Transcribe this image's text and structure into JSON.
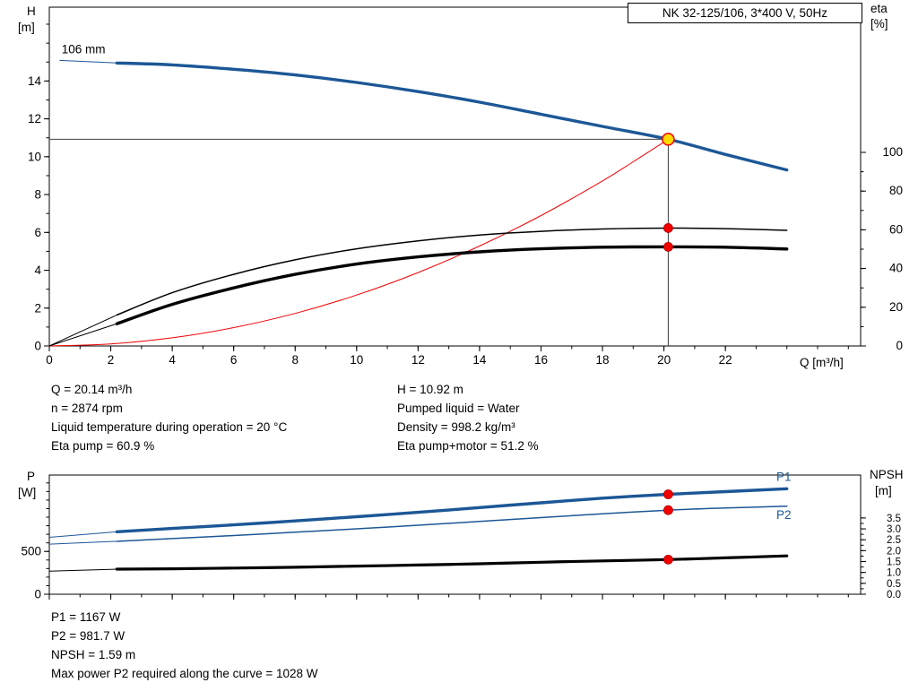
{
  "colors": {
    "blue": "#1c5796",
    "red": "#f20000",
    "yellow": "#ffd900",
    "black": "#000000",
    "ref": "#404040"
  },
  "info_text": {
    "left": [
      "Q = 20.14 m³/h",
      "n = 2874 rpm",
      "Liquid temperature during operation = 20 °C",
      "Eta pump = 60.9 %"
    ],
    "right": [
      "H = 10.92 m",
      "Pumped liquid = Water",
      "Density = 998.2 kg/m³",
      "Eta pump+motor = 51.2 %"
    ]
  },
  "results_text": [
    "P1 = 1167 W",
    "P2 = 981.7 W",
    "NPSH = 1.59 m",
    "Max power P2 required along the curve = 1028 W"
  ],
  "chart_data": [
    {
      "name": "hq-eta-chart",
      "type": "line",
      "title": "NK 32-125/106, 3*400 V, 50Hz",
      "xlabel": "Q [m³/h]",
      "ylabel_left": [
        "H",
        "[m]"
      ],
      "ylabel_right": [
        "eta",
        "[%]"
      ],
      "xlim": [
        0,
        26.4
      ],
      "ylim_left": [
        0,
        17.9
      ],
      "ylim_right": [
        0,
        175
      ],
      "x_major_ticks": [
        0,
        2,
        4,
        6,
        8,
        10,
        12,
        14,
        16,
        18,
        20,
        22
      ],
      "x_minor_step": 1,
      "left_major_ticks": [
        0,
        2,
        4,
        6,
        8,
        10,
        12,
        14
      ],
      "left_minor_step": 1,
      "right_major_ticks": [
        0,
        20,
        40,
        60,
        80,
        100
      ],
      "right_minor_step": 10,
      "right_decimals": 0,
      "annotations": [
        {
          "text": "106 mm",
          "x": 0.4,
          "y": 15.45
        }
      ],
      "ref_lines": {
        "h_value": 10.92,
        "v_value": 20.14
      },
      "series": [
        {
          "name": "head-curve",
          "axis": "left",
          "color": "blue",
          "width": 3.4,
          "lead_in": [
            0.33,
            15.09
          ],
          "x": [
            2.2,
            4,
            6,
            8,
            10,
            12,
            14,
            16,
            18,
            20.14,
            22,
            24
          ],
          "y": [
            14.95,
            14.85,
            14.62,
            14.32,
            13.92,
            13.44,
            12.88,
            12.24,
            11.6,
            10.92,
            10.12,
            9.3
          ]
        },
        {
          "name": "system-curve",
          "axis": "left",
          "color": "red",
          "width": 1,
          "x": [
            0,
            2,
            4,
            6,
            8,
            10,
            12,
            14,
            16,
            18,
            19,
            20.14
          ],
          "y": [
            0,
            0.11,
            0.43,
            0.97,
            1.72,
            2.69,
            3.88,
            5.28,
            6.89,
            8.72,
            9.73,
            10.92
          ]
        },
        {
          "name": "eta-pump-curve",
          "axis": "right",
          "color": "black",
          "width": 1.5,
          "lead_in": [
            0,
            0
          ],
          "x": [
            2.2,
            4,
            6,
            8,
            10,
            12,
            14,
            16,
            18,
            20.14,
            22,
            24
          ],
          "y": [
            16,
            27.5,
            37,
            44.5,
            50.2,
            54.3,
            57.3,
            59.2,
            60.4,
            60.9,
            60.6,
            59.7
          ]
        },
        {
          "name": "eta-pump-motor-curve",
          "axis": "right",
          "color": "black",
          "width": 3.4,
          "lead_in": [
            0,
            0
          ],
          "x": [
            2.2,
            4,
            6,
            8,
            10,
            12,
            14,
            16,
            18,
            20.14,
            22,
            24
          ],
          "y": [
            11.5,
            21.5,
            30,
            37,
            42.3,
            46,
            48.6,
            50.2,
            51,
            51.2,
            51,
            50.1
          ]
        }
      ],
      "markers": [
        {
          "name": "duty-point",
          "style": "duty",
          "axis": "left",
          "x": 20.14,
          "y": 10.92
        },
        {
          "name": "eta-pump-dot",
          "style": "dot",
          "axis": "right",
          "x": 20.14,
          "y": 60.9
        },
        {
          "name": "eta-pump-motor-dot",
          "style": "dot",
          "axis": "right",
          "x": 20.14,
          "y": 51.2
        }
      ]
    },
    {
      "name": "power-npsh-chart",
      "type": "line",
      "xlabel": "",
      "x_labels": false,
      "ylabel_left": [
        "P",
        "[W]"
      ],
      "ylabel_right": [
        "NPSH",
        "[m]"
      ],
      "xlim": [
        0,
        26.4
      ],
      "ylim_left": [
        0,
        1392
      ],
      "ylim_right": [
        0,
        5.47
      ],
      "x_major_ticks": [
        0,
        2,
        4,
        6,
        8,
        10,
        12,
        14,
        16,
        18,
        20,
        22
      ],
      "x_minor_step": 1,
      "left_major_ticks": [
        0,
        500
      ],
      "left_minor_step": 100,
      "right_major_ticks": [
        0,
        0.5,
        1,
        1.5,
        2,
        2.5,
        3,
        3.5
      ],
      "right_minor_step": 0.25,
      "right_decimals": 1,
      "series": [
        {
          "name": "p1-curve",
          "axis": "left",
          "color": "blue",
          "width": 3.4,
          "lead_in": [
            0,
            665
          ],
          "x": [
            2.2,
            4,
            6,
            8,
            10,
            12,
            14,
            16,
            18,
            20.14,
            22,
            24
          ],
          "y": [
            730,
            768,
            810,
            856,
            905,
            957,
            1012,
            1068,
            1122,
            1167,
            1198,
            1232
          ]
        },
        {
          "name": "p2-curve",
          "axis": "left",
          "color": "blue",
          "width": 1.5,
          "lead_in": [
            0,
            585
          ],
          "x": [
            2.2,
            4,
            6,
            8,
            10,
            12,
            14,
            16,
            18,
            20.14,
            22,
            24
          ],
          "y": [
            618,
            650,
            686,
            724,
            764,
            806,
            850,
            895,
            940,
            981.7,
            1007,
            1028
          ]
        },
        {
          "name": "npsh-curve",
          "axis": "right",
          "color": "black",
          "width": 3.2,
          "lead_in": [
            0,
            1.06
          ],
          "x": [
            2.2,
            4,
            6,
            8,
            10,
            12,
            14,
            16,
            18,
            20.14,
            22,
            24
          ],
          "y": [
            1.15,
            1.17,
            1.2,
            1.24,
            1.29,
            1.34,
            1.4,
            1.47,
            1.53,
            1.59,
            1.67,
            1.76
          ]
        }
      ],
      "end_labels": [
        {
          "text": "P1",
          "axis": "left",
          "x": 23.9,
          "y": 1325,
          "color": "blue"
        },
        {
          "text": "P2",
          "axis": "left",
          "x": 23.9,
          "y": 880,
          "color": "blue"
        }
      ],
      "markers": [
        {
          "name": "p1-dot",
          "style": "dot",
          "axis": "left",
          "x": 20.14,
          "y": 1167
        },
        {
          "name": "p2-dot",
          "style": "dot",
          "axis": "left",
          "x": 20.14,
          "y": 981.7
        },
        {
          "name": "npsh-dot",
          "style": "dot",
          "axis": "right",
          "x": 20.14,
          "y": 1.59
        }
      ]
    }
  ]
}
